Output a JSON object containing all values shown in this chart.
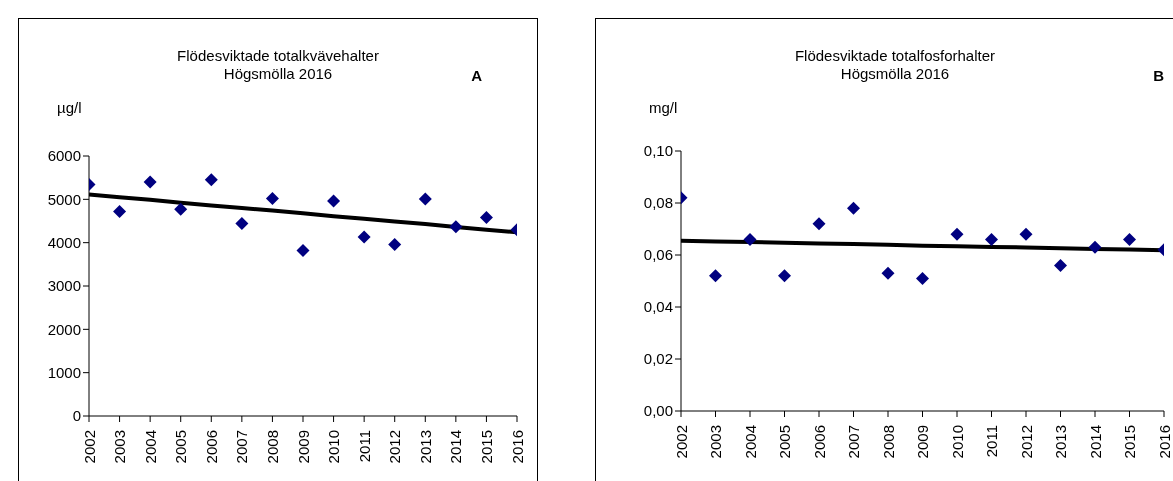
{
  "chart_data": [
    {
      "type": "scatter",
      "title": "Flödesviktade totalkvävehalter\nHögsmölla 2016",
      "ylabel": "µg/l",
      "annotations": [
        "A"
      ],
      "categories": [
        "2002",
        "2003",
        "2004",
        "2005",
        "2006",
        "2007",
        "2008",
        "2009",
        "2010",
        "2011",
        "2012",
        "2013",
        "2014",
        "2015",
        "2016"
      ],
      "ylim": [
        0,
        6000
      ],
      "yticks": [
        0,
        1000,
        2000,
        3000,
        4000,
        5000,
        6000
      ],
      "grid": false,
      "legend": false,
      "series": [
        {
          "color": "#000080",
          "marker": "diamond",
          "values": [
            5340,
            4720,
            5400,
            4770,
            5450,
            4440,
            5020,
            3820,
            4960,
            4130,
            3960,
            5010,
            4370,
            4580,
            4300
          ]
        },
        {
          "type": "line",
          "color": "#000000",
          "marker": "none",
          "line_style": "solid",
          "values": [
            5110,
            5050,
            4990,
            4920,
            4860,
            4800,
            4740,
            4680,
            4610,
            4550,
            4490,
            4430,
            4360,
            4300,
            4240
          ]
        }
      ]
    },
    {
      "type": "scatter",
      "title": "Flödesviktade totalfosforhalter\nHögsmölla 2016",
      "ylabel": "mg/l",
      "annotations": [
        "B"
      ],
      "categories": [
        "2002",
        "2003",
        "2004",
        "2005",
        "2006",
        "2007",
        "2008",
        "2009",
        "2010",
        "2011",
        "2012",
        "2013",
        "2014",
        "2015",
        "2016"
      ],
      "ylim": [
        0,
        0.1
      ],
      "yticks": [
        {
          "value": 0,
          "label": "0,00"
        },
        {
          "value": 0.02,
          "label": "0,02"
        },
        {
          "value": 0.04,
          "label": "0,04"
        },
        {
          "value": 0.06,
          "label": "0,06"
        },
        {
          "value": 0.08,
          "label": "0,08"
        },
        {
          "value": 0.1,
          "label": "0,10"
        }
      ],
      "grid": false,
      "legend": false,
      "series": [
        {
          "color": "#000080",
          "marker": "diamond",
          "values": [
            0.082,
            0.052,
            0.066,
            0.052,
            0.072,
            0.078,
            0.053,
            0.051,
            0.068,
            0.066,
            0.068,
            0.056,
            0.063,
            0.066,
            0.062
          ]
        },
        {
          "type": "line",
          "color": "#000000",
          "marker": "none",
          "line_style": "solid",
          "values": [
            0.0655,
            0.0652,
            0.065,
            0.0647,
            0.0644,
            0.0642,
            0.0639,
            0.0636,
            0.0634,
            0.0631,
            0.0629,
            0.0626,
            0.0623,
            0.0621,
            0.0618
          ]
        }
      ]
    }
  ]
}
